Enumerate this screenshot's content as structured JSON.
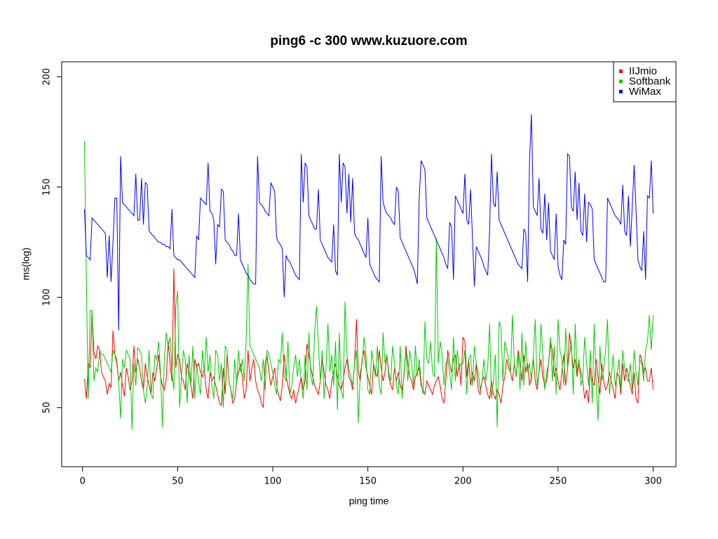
{
  "chart_data": {
    "type": "line",
    "title": "ping6 -c 300 www.kuzuore.com",
    "x_label": "ping time",
    "y_label": "ms(log)",
    "xlim": [
      -10.96,
      311.96
    ],
    "xticks": [
      0,
      50,
      100,
      150,
      200,
      250,
      300
    ],
    "ylim": [
      23.2,
      206.8
    ],
    "yticks": [
      50,
      100,
      150,
      200
    ],
    "grid": false,
    "legend": "top-right",
    "x": [
      1,
      2,
      3,
      4,
      5,
      6,
      7,
      8,
      9,
      10,
      11,
      12,
      13,
      14,
      15,
      16,
      17,
      18,
      19,
      20,
      21,
      22,
      23,
      24,
      25,
      26,
      27,
      28,
      29,
      30,
      31,
      32,
      33,
      34,
      35,
      36,
      37,
      38,
      39,
      40,
      41,
      42,
      43,
      44,
      45,
      46,
      47,
      48,
      49,
      50,
      51,
      52,
      53,
      54,
      55,
      56,
      57,
      58,
      59,
      60,
      61,
      62,
      63,
      64,
      65,
      66,
      67,
      68,
      69,
      70,
      71,
      72,
      73,
      74,
      75,
      76,
      77,
      78,
      79,
      80,
      81,
      82,
      83,
      84,
      85,
      86,
      87,
      88,
      89,
      90,
      91,
      92,
      93,
      94,
      95,
      96,
      97,
      98,
      99,
      100,
      101,
      102,
      103,
      104,
      105,
      106,
      107,
      108,
      109,
      110,
      111,
      112,
      113,
      114,
      115,
      116,
      117,
      118,
      119,
      120,
      121,
      122,
      123,
      124,
      125,
      126,
      127,
      128,
      129,
      130,
      131,
      132,
      133,
      134,
      135,
      136,
      137,
      138,
      139,
      140,
      141,
      142,
      143,
      144,
      145,
      146,
      147,
      148,
      149,
      150,
      151,
      152,
      153,
      154,
      155,
      156,
      157,
      158,
      159,
      160,
      161,
      162,
      163,
      164,
      165,
      166,
      167,
      168,
      169,
      170,
      171,
      172,
      173,
      174,
      175,
      176,
      177,
      178,
      179,
      180,
      181,
      182,
      183,
      184,
      185,
      186,
      187,
      188,
      189,
      190,
      191,
      192,
      193,
      194,
      195,
      196,
      197,
      198,
      199,
      200,
      201,
      202,
      203,
      204,
      205,
      206,
      207,
      208,
      209,
      210,
      211,
      212,
      213,
      214,
      215,
      216,
      217,
      218,
      219,
      220,
      221,
      222,
      223,
      224,
      225,
      226,
      227,
      228,
      229,
      230,
      231,
      232,
      233,
      234,
      235,
      236,
      237,
      238,
      239,
      240,
      241,
      242,
      243,
      244,
      245,
      246,
      247,
      248,
      249,
      250,
      251,
      252,
      253,
      254,
      255,
      256,
      257,
      258,
      259,
      260,
      261,
      262,
      263,
      264,
      265,
      266,
      267,
      268,
      269,
      270,
      271,
      272,
      273,
      274,
      275,
      276,
      277,
      278,
      279,
      280,
      281,
      282,
      283,
      284,
      285,
      286,
      287,
      288,
      289,
      290,
      291,
      292,
      293,
      294,
      295,
      296,
      297,
      298,
      299,
      300
    ],
    "series": [
      {
        "name": "IIJmio",
        "color": "#ff0000",
        "values": [
          63,
          54,
          70,
          68,
          94,
          75,
          72,
          78,
          76,
          66,
          64,
          62,
          56,
          61,
          59,
          85,
          74,
          70,
          62,
          66,
          60,
          55,
          68,
          64,
          58,
          62,
          78,
          66,
          72,
          68,
          62,
          58,
          70,
          64,
          60,
          56,
          66,
          62,
          68,
          74,
          64,
          60,
          58,
          63,
          80,
          70,
          62,
          113,
          68,
          74,
          72,
          64,
          62,
          58,
          70,
          66,
          60,
          54,
          72,
          68,
          70,
          66,
          64,
          68,
          58,
          54,
          66,
          62,
          64,
          60,
          56,
          52,
          51,
          68,
          56,
          74,
          62,
          58,
          52,
          54,
          62,
          66,
          70,
          64,
          54,
          58,
          76,
          62,
          68,
          72,
          62,
          58,
          56,
          52,
          50,
          70,
          74,
          66,
          60,
          64,
          68,
          60,
          56,
          53,
          60,
          74,
          64,
          60,
          56,
          54,
          58,
          52,
          56,
          60,
          64,
          58,
          62,
          79,
          74,
          68,
          64,
          60,
          58,
          56,
          62,
          72,
          66,
          60,
          58,
          54,
          62,
          66,
          70,
          64,
          60,
          58,
          62,
          68,
          72,
          64,
          62,
          58,
          70,
          90,
          66,
          62,
          72,
          76,
          68,
          64,
          60,
          56,
          70,
          66,
          64,
          76,
          68,
          62,
          66,
          74,
          64,
          60,
          58,
          68,
          62,
          66,
          60,
          58,
          64,
          78,
          70,
          64,
          62,
          58,
          64,
          66,
          68,
          60,
          58,
          56,
          62,
          60,
          58,
          56,
          60,
          62,
          64,
          60,
          54,
          52,
          62,
          76,
          70,
          66,
          72,
          74,
          64,
          70,
          60,
          82,
          80,
          64,
          72,
          60,
          66,
          62,
          70,
          58,
          56,
          62,
          64,
          60,
          56,
          54,
          62,
          56,
          54,
          58,
          56,
          52,
          60,
          64,
          72,
          68,
          66,
          62,
          70,
          64,
          76,
          70,
          62,
          74,
          66,
          70,
          60,
          64,
          72,
          62,
          58,
          66,
          72,
          64,
          60,
          62,
          70,
          80,
          76,
          64,
          68,
          62,
          58,
          66,
          74,
          60,
          68,
          84,
          76,
          68,
          72,
          64,
          70,
          66,
          62,
          54,
          58,
          52,
          68,
          62,
          60,
          72,
          64,
          56,
          70,
          62,
          58,
          60,
          66,
          62,
          58,
          54,
          66,
          64,
          56,
          70,
          62,
          68,
          64,
          60,
          56,
          66,
          54,
          52,
          74,
          72,
          66,
          68,
          62,
          62,
          68,
          58
        ]
      },
      {
        "name": "Softbank",
        "color": "#00cc00",
        "values": [
          171,
          108,
          54,
          94,
          94,
          62,
          68,
          66,
          76,
          74,
          74,
          72,
          70,
          68,
          66,
          76,
          74,
          72,
          62,
          45,
          72,
          68,
          76,
          74,
          72,
          40,
          70,
          60,
          77,
          76,
          74,
          58,
          52,
          60,
          76,
          56,
          54,
          74,
          72,
          80,
          66,
          41,
          72,
          84,
          78,
          82,
          66,
          58,
          96,
          103,
          50,
          64,
          76,
          72,
          52,
          74,
          60,
          78,
          54,
          70,
          62,
          56,
          76,
          66,
          82,
          66,
          74,
          60,
          54,
          76,
          74,
          62,
          70,
          50,
          78,
          76,
          62,
          58,
          54,
          72,
          60,
          76,
          66,
          72,
          62,
          80,
          115,
          78,
          76,
          74,
          72,
          70,
          68,
          62,
          72,
          58,
          76,
          74,
          70,
          66,
          60,
          56,
          72,
          70,
          84,
          64,
          62,
          80,
          56,
          60,
          68,
          74,
          64,
          72,
          62,
          54,
          74,
          58,
          84,
          64,
          60,
          84,
          96,
          78,
          62,
          76,
          54,
          68,
          88,
          66,
          74,
          60,
          80,
          49,
          84,
          58,
          54,
          98,
          74,
          68,
          64,
          60,
          70,
          76,
          43,
          66,
          70,
          82,
          74,
          58,
          56,
          76,
          70,
          64,
          78,
          60,
          56,
          84,
          70,
          74,
          66,
          62,
          78,
          70,
          60,
          56,
          78,
          54,
          66,
          76,
          62,
          76,
          70,
          60,
          78,
          64,
          72,
          62,
          56,
          89,
          72,
          70,
          80,
          66,
          64,
          127,
          70,
          80,
          74,
          60,
          70,
          72,
          66,
          58,
          82,
          62,
          76,
          68,
          70,
          70,
          76,
          56,
          72,
          74,
          60,
          78,
          70,
          66,
          58,
          62,
          72,
          62,
          68,
          88,
          54,
          62,
          74,
          41,
          89,
          86,
          62,
          80,
          76,
          72,
          66,
          92,
          70,
          64,
          74,
          58,
          84,
          60,
          80,
          66,
          70,
          62,
          74,
          90,
          60,
          66,
          88,
          74,
          58,
          66,
          70,
          82,
          62,
          78,
          56,
          90,
          76,
          72,
          60,
          86,
          68,
          74,
          80,
          56,
          88,
          66,
          72,
          60,
          64,
          82,
          70,
          60,
          76,
          52,
          88,
          62,
          44,
          78,
          62,
          68,
          76,
          90,
          56,
          64,
          74,
          60,
          64,
          72,
          58,
          76,
          68,
          64,
          62,
          70,
          58,
          76,
          66,
          60,
          72,
          70,
          62,
          76,
          80,
          92,
          76,
          92
        ]
      },
      {
        "name": "WiMax",
        "color": "#0000ff",
        "values": [
          140,
          119,
          118,
          117,
          136,
          135,
          134,
          133,
          132,
          131,
          130,
          129,
          109,
          128,
          107,
          125,
          145,
          145,
          85,
          164,
          143,
          142,
          141,
          140,
          139,
          138,
          137,
          156,
          135,
          135,
          154,
          133,
          152,
          151,
          130,
          129,
          128,
          127,
          126,
          125,
          125,
          124,
          124,
          123,
          123,
          122,
          140,
          119,
          118,
          117,
          117,
          116,
          115,
          114,
          113,
          112,
          111,
          110,
          109,
          128,
          126,
          145,
          144,
          143,
          142,
          161,
          139,
          138,
          135,
          115,
          133,
          132,
          149,
          148,
          126,
          125,
          124,
          122,
          121,
          119,
          119,
          138,
          117,
          115,
          113,
          111,
          110,
          108,
          107,
          106,
          106,
          164,
          143,
          142,
          141,
          139,
          138,
          137,
          152,
          150,
          148,
          127,
          125,
          124,
          122,
          100,
          119,
          117,
          116,
          114,
          112,
          110,
          109,
          108,
          165,
          143,
          161,
          159,
          137,
          135,
          133,
          131,
          131,
          149,
          126,
          124,
          122,
          120,
          118,
          117,
          116,
          133,
          112,
          110,
          165,
          143,
          161,
          159,
          138,
          156,
          134,
          154,
          129,
          127,
          126,
          124,
          122,
          120,
          118,
          136,
          115,
          113,
          111,
          109,
          108,
          107,
          164,
          143,
          140,
          138,
          137,
          136,
          134,
          133,
          150,
          148,
          127,
          125,
          123,
          121,
          119,
          117,
          115,
          113,
          110,
          106,
          145,
          162,
          160,
          158,
          136,
          134,
          132,
          130,
          128,
          126,
          124,
          122,
          120,
          118,
          115,
          113,
          134,
          132,
          108,
          146,
          144,
          142,
          140,
          138,
          156,
          135,
          133,
          149,
          127,
          105,
          123,
          121,
          119,
          117,
          114,
          112,
          110,
          130,
          165,
          143,
          141,
          157,
          135,
          133,
          131,
          129,
          127,
          125,
          123,
          121,
          119,
          117,
          115,
          114,
          113,
          131,
          129,
          107,
          162,
          183,
          141,
          139,
          137,
          154,
          131,
          129,
          147,
          126,
          143,
          121,
          119,
          117,
          138,
          114,
          110,
          108,
          126,
          124,
          165,
          164,
          141,
          139,
          157,
          135,
          152,
          130,
          128,
          147,
          125,
          143,
          142,
          140,
          117,
          115,
          113,
          111,
          109,
          107,
          107,
          145,
          143,
          141,
          139,
          137,
          136,
          135,
          133,
          151,
          130,
          128,
          146,
          123,
          141,
          160,
          139,
          117,
          114,
          112,
          130,
          108,
          146,
          145,
          162,
          138
        ]
      }
    ]
  }
}
